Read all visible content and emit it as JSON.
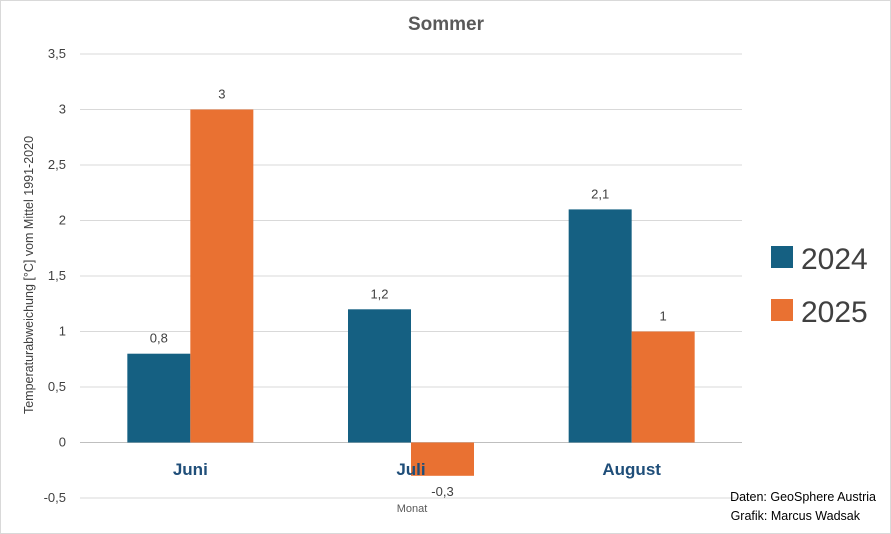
{
  "chart_data": {
    "type": "bar",
    "title": "Sommer",
    "xlabel": "Monat",
    "ylabel": "Temperaturabweichung [°C] vom Mittel 1991-2020",
    "categories": [
      "Juni",
      "Juli",
      "August"
    ],
    "ylim": [
      -0.5,
      3.5
    ],
    "yticks": [
      -0.5,
      0,
      0.5,
      1,
      1.5,
      2,
      2.5,
      3,
      3.5
    ],
    "ytick_labels": [
      "-0,5",
      "0",
      "0,5",
      "1",
      "1,5",
      "2",
      "2,5",
      "3",
      "3,5"
    ],
    "grid": true,
    "legend_position": "right",
    "series": [
      {
        "name": "2024",
        "color": "#156082",
        "values": [
          0.8,
          1.2,
          2.1
        ],
        "labels": [
          "0,8",
          "1,2",
          "2,1"
        ]
      },
      {
        "name": "2025",
        "color": "#e97132",
        "values": [
          3,
          -0.3,
          1
        ],
        "labels": [
          "3",
          "-0,3",
          "1"
        ]
      }
    ]
  },
  "credits": {
    "data": "Daten: GeoSphere Austria",
    "graphic": "Grafik: Marcus Wadsak"
  }
}
